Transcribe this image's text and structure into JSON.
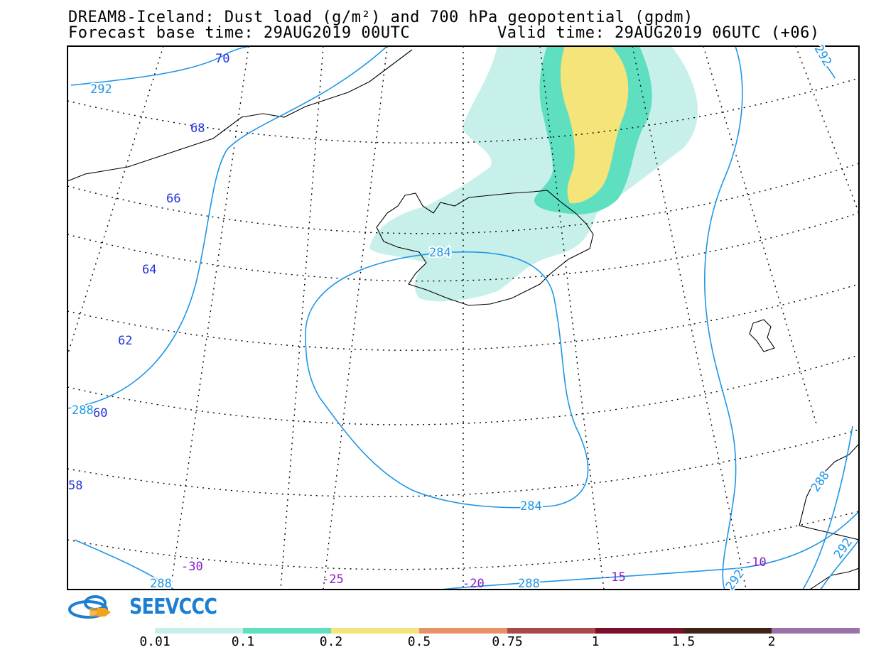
{
  "title_line1": "DREAM8-Iceland: Dust load (g/m²) and 700 hPa geopotential (gpdm)",
  "title_line2_left": "Forecast base time: 29AUG2019 00UTC",
  "title_line2_right": "Valid time: 29AUG2019 06UTC (+06)",
  "logo_text": "SEEVCCC",
  "logo_icon": "cloud-icon",
  "colors": {
    "contour": "#1e96e6",
    "lat_label": "#2233dd",
    "lon_label": "#8a1ac8",
    "coast": "#000000",
    "frame": "#000000"
  },
  "latitude_labels": [
    "70",
    "68",
    "66",
    "64",
    "62",
    "60",
    "58"
  ],
  "longitude_labels": [
    "-30",
    "-25",
    "-20",
    "-15",
    "-10"
  ],
  "contour_labels": [
    "292",
    "284",
    "288",
    "284",
    "288",
    "288",
    "292",
    "288",
    "292",
    "292"
  ],
  "legend": {
    "thresholds": [
      "0.01",
      "0.1",
      "0.2",
      "0.5",
      "0.75",
      "1",
      "1.5",
      "2"
    ],
    "colors": [
      "#c8f0ea",
      "#5ee0c0",
      "#f5e47a",
      "#e8916a",
      "#a84b48",
      "#7a0f2a",
      "#3d2416",
      "#9b72a8"
    ]
  }
}
